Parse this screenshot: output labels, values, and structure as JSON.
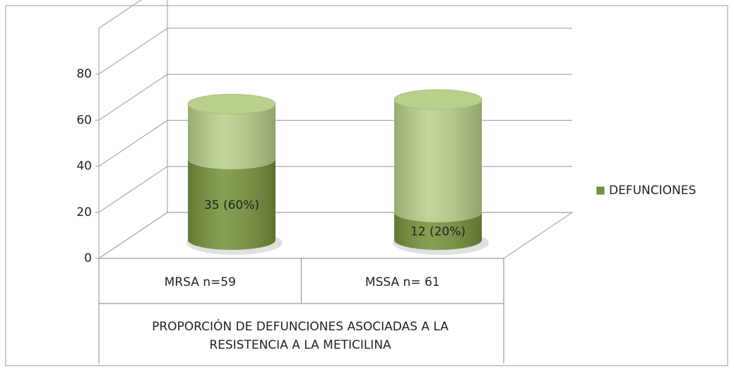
{
  "chart_data": {
    "type": "bar",
    "stacked": true,
    "categories": [
      "MRSA n=59",
      "MSSA n= 61"
    ],
    "xlabel": "PROPORCIÓN DE DEFUNCIONES ASOCIADAS A LA RESISTENCIA A LA METICILINA",
    "series": [
      {
        "name": "DEFUNCIONES",
        "color": "#77933c",
        "values": [
          35,
          12
        ],
        "value_labels": [
          "35 (60%)",
          "12 (20%)"
        ]
      },
      {
        "color": "#b9d08c",
        "values": [
          24,
          49
        ]
      }
    ],
    "ylim": [
      0,
      80
    ],
    "yticks": [
      0,
      20,
      40,
      60,
      80
    ],
    "grid": true,
    "legend": "right"
  }
}
